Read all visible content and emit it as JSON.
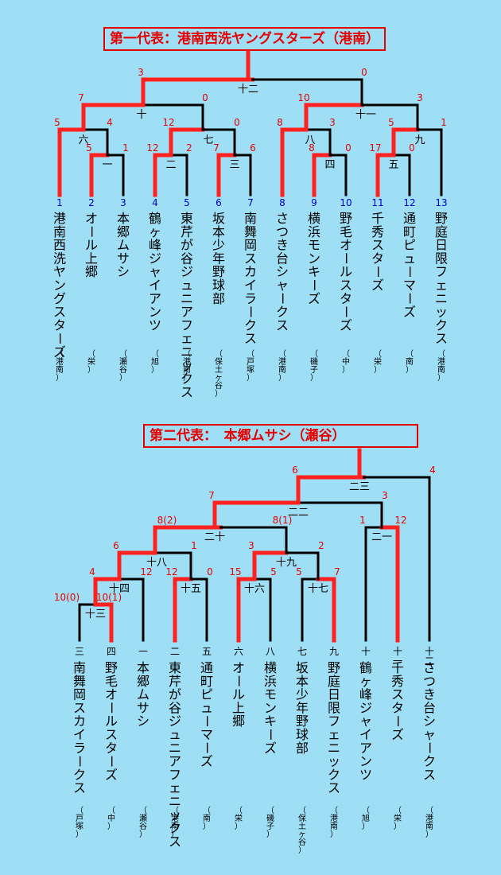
{
  "colors": {
    "background": "#9fdff5",
    "winner": "#ff2020",
    "line": "#000000",
    "score": "#e60000",
    "team_number": "#0000cc",
    "title": "#e60000"
  },
  "bracket1": {
    "title": "第一代表：港南西洗ヤングスターズ（港南）",
    "teams": [
      {
        "num": "1",
        "name": "港南西洗ヤングスターズ",
        "region": "（港南）"
      },
      {
        "num": "2",
        "name": "オール上郷",
        "region": "（栄）"
      },
      {
        "num": "3",
        "name": "本郷ムサシ",
        "region": "（瀬谷）"
      },
      {
        "num": "4",
        "name": "鶴ヶ峰ジャイアンツ",
        "region": "（旭）"
      },
      {
        "num": "5",
        "name": "東芹が谷ジュニアフェニックス",
        "region": "（港南）"
      },
      {
        "num": "6",
        "name": "坂本少年野球部",
        "region": "（保土ヶ谷）"
      },
      {
        "num": "7",
        "name": "南舞岡スカイラークス",
        "region": "（戸塚）"
      },
      {
        "num": "8",
        "name": "さつき台シャークス",
        "region": "（港南）"
      },
      {
        "num": "9",
        "name": "横浜モンキーズ",
        "region": "（磯子）"
      },
      {
        "num": "10",
        "name": "野毛オールスターズ",
        "region": "（中）"
      },
      {
        "num": "11",
        "name": "千秀スターズ",
        "region": "（栄）"
      },
      {
        "num": "12",
        "name": "通町ピューマーズ",
        "region": "（南）"
      },
      {
        "num": "13",
        "name": "野庭日限フェニックス",
        "region": "（港南）"
      }
    ],
    "games": [
      {
        "label": "一",
        "left": "5",
        "right": "1"
      },
      {
        "label": "二",
        "left": "12",
        "right": "2"
      },
      {
        "label": "三",
        "left": "7",
        "right": "6"
      },
      {
        "label": "四",
        "left": "8",
        "right": "0"
      },
      {
        "label": "五",
        "left": "17",
        "right": "0"
      },
      {
        "label": "六",
        "left": "5",
        "right": "4"
      },
      {
        "label": "七",
        "left": "12",
        "right": "0"
      },
      {
        "label": "八",
        "left": "8",
        "right": "3"
      },
      {
        "label": "九",
        "left": "5",
        "right": "1"
      },
      {
        "label": "十",
        "left": "7",
        "right": "0"
      },
      {
        "label": "十一",
        "left": "10",
        "right": "3"
      },
      {
        "label": "十二",
        "left": "3",
        "right": "0"
      }
    ]
  },
  "bracket2": {
    "title": "第二代表：　本郷ムサシ（瀬谷）",
    "teams": [
      {
        "num": "三",
        "name": "南舞岡スカイラークス",
        "region": "（戸塚）"
      },
      {
        "num": "四",
        "name": "野毛オールスターズ",
        "region": "（中）"
      },
      {
        "num": "一",
        "name": "本郷ムサシ",
        "region": "（瀬谷）"
      },
      {
        "num": "二",
        "name": "東芹が谷ジュニアフェニックス",
        "region": "（港南）"
      },
      {
        "num": "五",
        "name": "通町ピューマーズ",
        "region": "（南）"
      },
      {
        "num": "六",
        "name": "オール上郷",
        "region": "（栄）"
      },
      {
        "num": "八",
        "name": "横浜モンキーズ",
        "region": "（磯子）"
      },
      {
        "num": "七",
        "name": "坂本少年野球部",
        "region": "（保土ヶ谷）"
      },
      {
        "num": "九",
        "name": "野庭日限フェニックス",
        "region": "（港南）"
      },
      {
        "num": "十",
        "name": "鶴ヶ峰ジャイアンツ",
        "region": "（旭）"
      },
      {
        "num": "十一",
        "name": "千秀スターズ",
        "region": "（栄）"
      },
      {
        "num": "十二",
        "name": "さつき台シャークス",
        "region": "（港南）"
      }
    ],
    "games": [
      {
        "label": "十三",
        "left": "10(0)",
        "right": "10(1)"
      },
      {
        "label": "十四",
        "left": "4",
        "right": "12"
      },
      {
        "label": "十五",
        "left": "12",
        "right": "0"
      },
      {
        "label": "十六",
        "left": "15",
        "right": "5"
      },
      {
        "label": "十七",
        "left": "5",
        "right": "7"
      },
      {
        "label": "十八",
        "left": "6",
        "right": "1"
      },
      {
        "label": "十九",
        "left": "3",
        "right": "2"
      },
      {
        "label": "二十",
        "left": "8(2)",
        "right": "8(1)"
      },
      {
        "label": "二一",
        "left": "1",
        "right": "12"
      },
      {
        "label": "二二",
        "left": "7",
        "right": "3"
      },
      {
        "label": "二三",
        "left": "6",
        "right": "4"
      }
    ]
  }
}
